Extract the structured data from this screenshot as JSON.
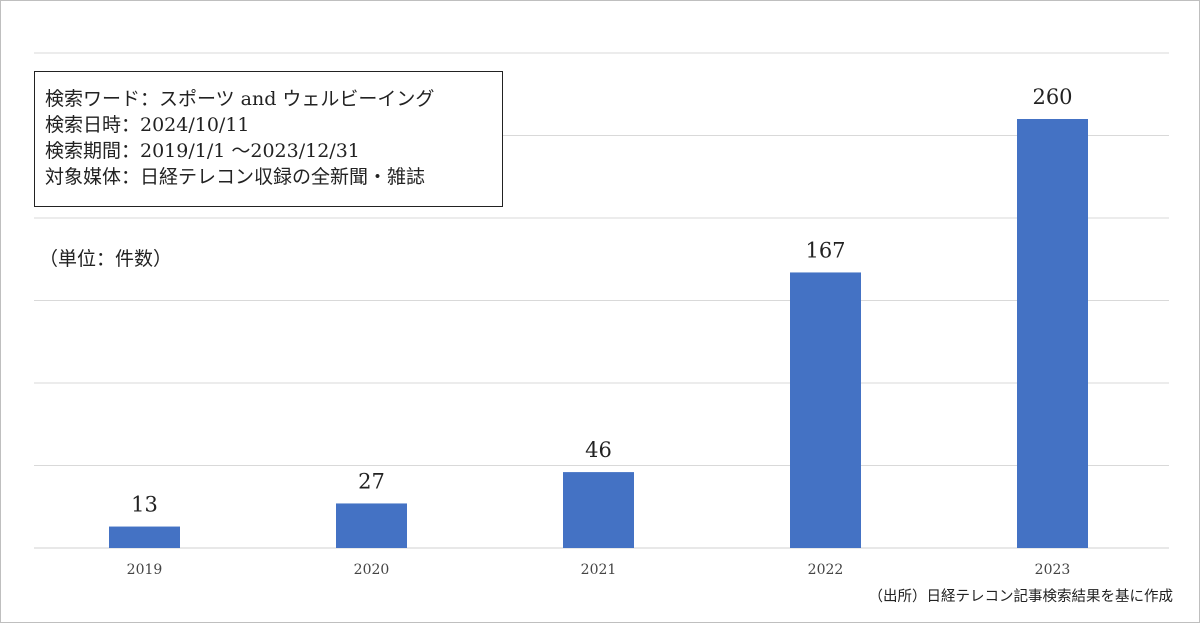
{
  "info_box": {
    "lines": [
      "検索ワード：スポーツ and ウェルビーイング",
      "検索日時：2024/10/11",
      "検索期間：2019/1/1 ～2023/12/31",
      "対象媒体：日経テレコン収録の全新聞・雑誌"
    ]
  },
  "unit_label": "（単位：件数）",
  "source_note": "（出所）日経テレコン記事検索結果を基に作成",
  "colors": {
    "bar": "#4472c4",
    "grid": "#d9d9d9",
    "axis": "#d9d9d9",
    "text": "#222222"
  },
  "chart_data": {
    "type": "bar",
    "categories": [
      "2019",
      "2020",
      "2021",
      "2022",
      "2023"
    ],
    "values": [
      13,
      27,
      46,
      167,
      260
    ],
    "data_labels": [
      "13",
      "27",
      "46",
      "167",
      "260"
    ],
    "title": "",
    "xlabel": "",
    "ylabel": "",
    "ylim": [
      0,
      300
    ],
    "grid": true,
    "gridline_step": 50
  }
}
